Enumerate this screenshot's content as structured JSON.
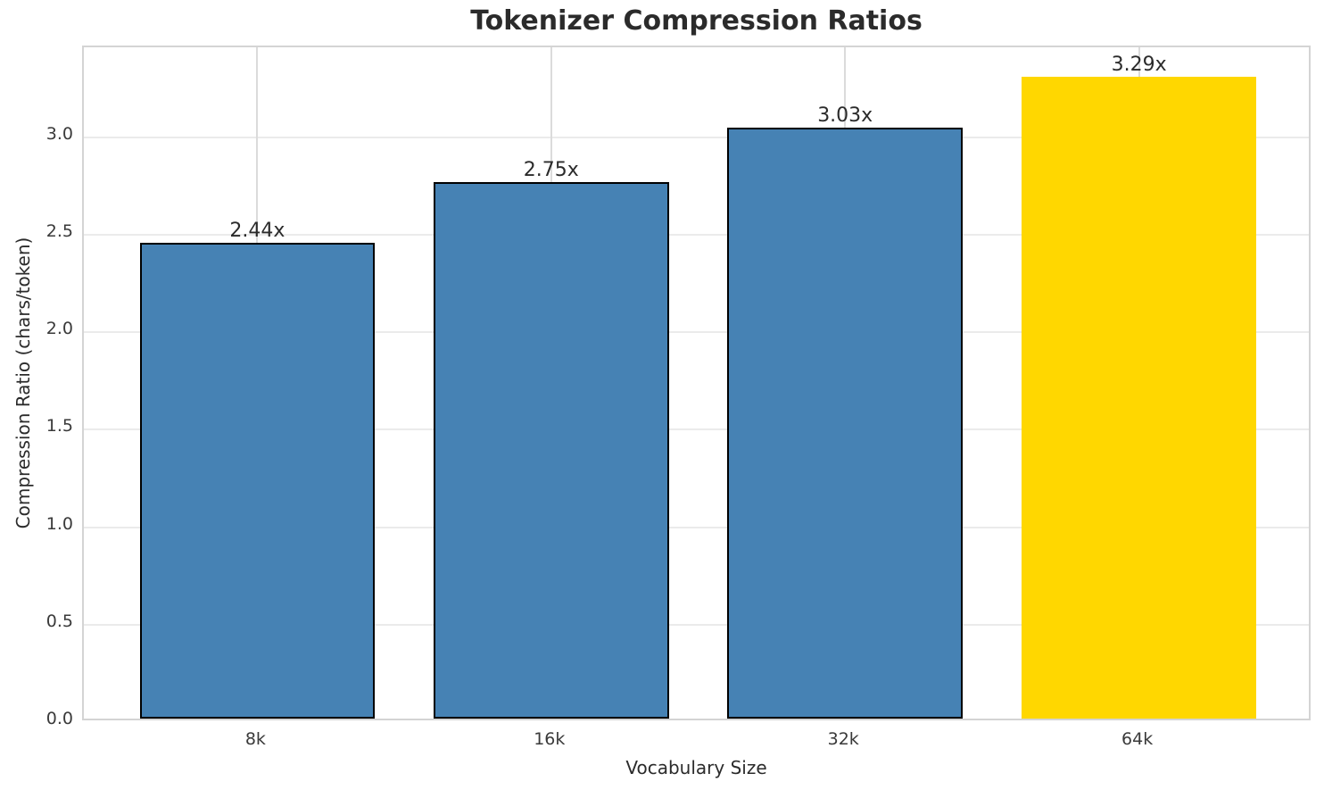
{
  "chart_data": {
    "type": "bar",
    "title": "Tokenizer Compression Ratios",
    "xlabel": "Vocabulary Size",
    "ylabel": "Compression Ratio (chars/token)",
    "categories": [
      "8k",
      "16k",
      "32k",
      "64k"
    ],
    "values": [
      2.44,
      2.75,
      3.03,
      3.29
    ],
    "bar_labels": [
      "2.44x",
      "2.75x",
      "3.03x",
      "3.29x"
    ],
    "bar_colors": [
      "#4682B4",
      "#4682B4",
      "#4682B4",
      "#FFD700"
    ],
    "bar_edge_colors": [
      "#000000",
      "#000000",
      "#000000",
      "none"
    ],
    "bar_width_units": 0.8,
    "ylim": [
      0,
      3.46
    ],
    "yticks": [
      0,
      0.5,
      1,
      1.5,
      2,
      2.5,
      3
    ],
    "ytick_labels": [
      "0.0",
      "0.5",
      "1.0",
      "1.5",
      "2.0",
      "2.5",
      "3.0"
    ],
    "grid": true,
    "legend_position": "none",
    "colors": {
      "bar_blue": "#4682B4",
      "bar_highlight_gold": "#FFD700",
      "horizontal_grid": "#EBEBEB",
      "vertical_grid": "#DBDBDB",
      "spine": "#D4D4D4",
      "title_text": "#2B2B2B",
      "tick_text": "#3A3A3A"
    }
  }
}
